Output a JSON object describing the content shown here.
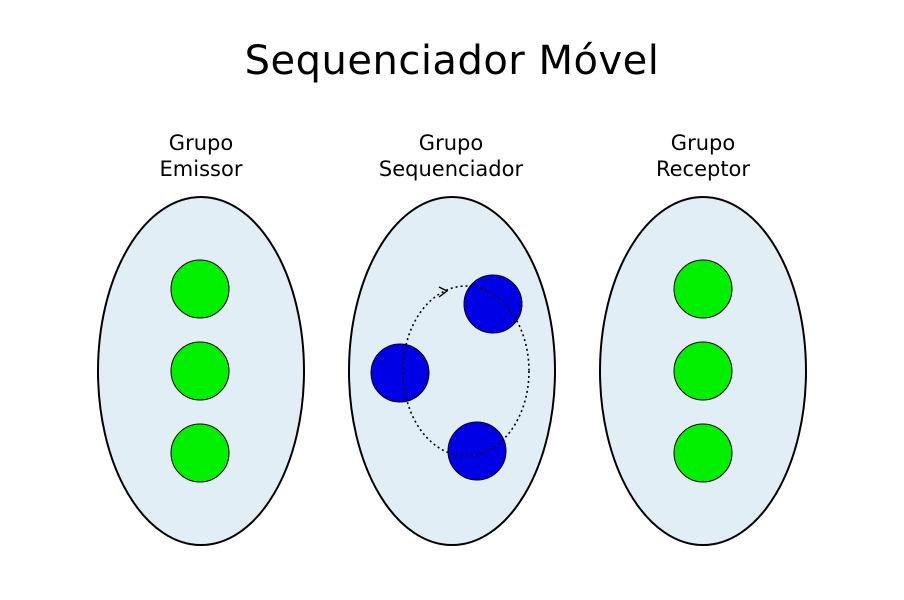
{
  "title": "Sequenciador Móvel",
  "groups": [
    {
      "line1": "Grupo",
      "line2": "Emissor"
    },
    {
      "line1": "Grupo",
      "line2": "Sequenciador"
    },
    {
      "line1": "Grupo",
      "line2": "Receptor"
    }
  ],
  "colors": {
    "group_fill": "#e2eef6",
    "group_stroke": "#000000",
    "member_node": "#00f000",
    "sequencer_node": "#0000e6",
    "rotation_path": "#000000"
  }
}
